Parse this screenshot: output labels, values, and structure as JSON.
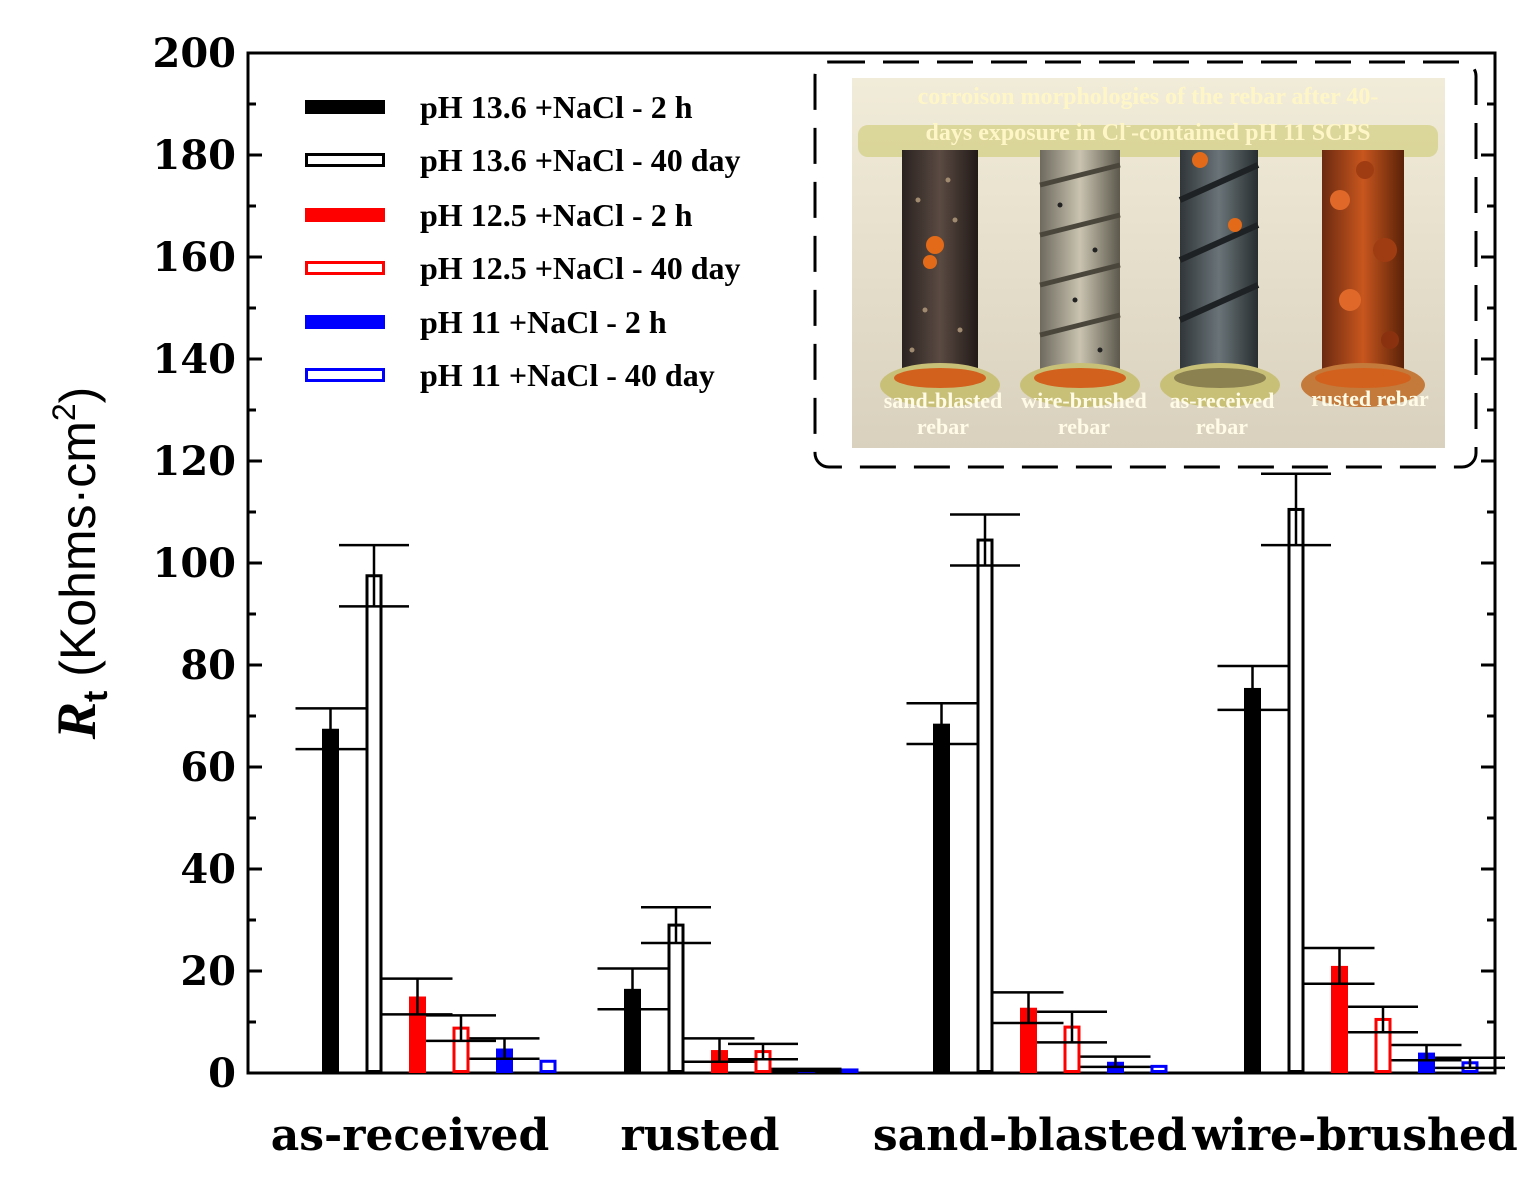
{
  "chart_data": {
    "type": "bar",
    "title": "",
    "xlabel": "",
    "ylabel": {
      "symbol": "R",
      "subscript": "t",
      "units": " (Kohms·cm",
      "superscript": "2",
      "close": ")"
    },
    "ylim": [
      0,
      200
    ],
    "yticks": [
      "0",
      "20",
      "40",
      "60",
      "80",
      "100",
      "120",
      "140",
      "160",
      "180",
      "200"
    ],
    "categories": [
      "as-received",
      "rusted",
      "sand-blasted",
      "wire-brushed"
    ],
    "legend_position": "top-left",
    "series": [
      {
        "name": "pH 13.6 +NaCl - 2 h",
        "color": "#000000",
        "filled": true,
        "values": [
          67.5,
          16.5,
          68.5,
          75.5
        ],
        "errors": [
          4.0,
          4.0,
          4.0,
          4.3
        ]
      },
      {
        "name": "pH 13.6 +NaCl - 40 day",
        "color": "#000000",
        "filled": false,
        "values": [
          97.5,
          29.0,
          104.5,
          110.5
        ],
        "errors": [
          6.0,
          3.5,
          5.0,
          7.0
        ]
      },
      {
        "name": "pH 12.5 +NaCl - 2 h",
        "color": "#ff0000",
        "filled": true,
        "values": [
          15.0,
          4.5,
          12.8,
          21.0
        ],
        "errors": [
          3.5,
          2.3,
          3.0,
          3.5
        ]
      },
      {
        "name": "pH 12.5 +NaCl - 40 day",
        "color": "#ff0000",
        "filled": false,
        "values": [
          8.8,
          4.2,
          9.0,
          10.5
        ],
        "errors": [
          2.5,
          1.5,
          3.0,
          2.5
        ]
      },
      {
        "name": "pH 11 +NaCl - 2 h",
        "color": "#0000ff",
        "filled": true,
        "values": [
          4.8,
          0.6,
          2.2,
          4.0
        ],
        "errors": [
          2.0,
          0.2,
          1.0,
          1.5
        ]
      },
      {
        "name": "pH 11 +NaCl - 40 day",
        "color": "#0000ff",
        "filled": false,
        "values": [
          2.3,
          0.6,
          1.3,
          2.0
        ],
        "errors": [
          0,
          0,
          0,
          1.0
        ]
      }
    ]
  },
  "inset": {
    "title_line1": "corroison morphologies of the rebar after 40-",
    "title_line2": "days exposure in Cl",
    "title_sup": "-",
    "title_line2_end": "-contained pH 11 SCPS",
    "labels": [
      {
        "line1": "sand-blasted",
        "line2": "rebar"
      },
      {
        "line1": "wire-brushed",
        "line2": "rebar"
      },
      {
        "line1": "as-received",
        "line2": "rebar"
      },
      {
        "line1": "rusted rebar",
        "line2": ""
      }
    ]
  }
}
